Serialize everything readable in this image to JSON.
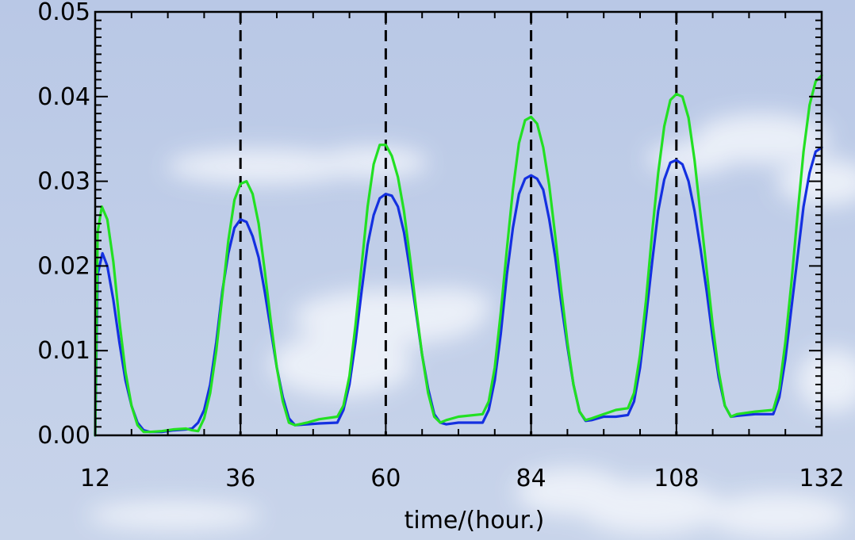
{
  "chart_data": {
    "type": "line",
    "title": "",
    "xlabel": "time/(hour.)",
    "ylabel": "",
    "xlim": [
      12,
      132
    ],
    "ylim": [
      0,
      0.05
    ],
    "x_ticks": [
      "12",
      "36",
      "60",
      "84",
      "108",
      "132"
    ],
    "y_ticks": [
      "0.00",
      "0.01",
      "0.02",
      "0.03",
      "0.04",
      "0.05"
    ],
    "x_tick_values": [
      12,
      36,
      60,
      84,
      108,
      132
    ],
    "y_tick_values": [
      0,
      0.01,
      0.02,
      0.03,
      0.04,
      0.05
    ],
    "vlines": [
      36,
      60,
      84,
      108
    ],
    "grid": false,
    "legend": "none",
    "series": [
      {
        "color": "#1430e0",
        "points": [
          [
            12,
            0.0
          ],
          [
            12.4,
            0.019
          ],
          [
            13.2,
            0.0215
          ],
          [
            14,
            0.02
          ],
          [
            15,
            0.016
          ],
          [
            16,
            0.011
          ],
          [
            17,
            0.0065
          ],
          [
            18,
            0.0035
          ],
          [
            19,
            0.0015
          ],
          [
            20,
            0.0006
          ],
          [
            21,
            0.0004
          ],
          [
            23,
            0.0004
          ],
          [
            25,
            0.0006
          ],
          [
            27,
            0.0007
          ],
          [
            28,
            0.0008
          ],
          [
            29,
            0.0015
          ],
          [
            30,
            0.003
          ],
          [
            31,
            0.006
          ],
          [
            32,
            0.011
          ],
          [
            33,
            0.017
          ],
          [
            34,
            0.0215
          ],
          [
            35,
            0.0245
          ],
          [
            36,
            0.0255
          ],
          [
            37,
            0.0252
          ],
          [
            38,
            0.0235
          ],
          [
            39,
            0.021
          ],
          [
            40,
            0.017
          ],
          [
            41,
            0.0125
          ],
          [
            42,
            0.008
          ],
          [
            43,
            0.0045
          ],
          [
            44,
            0.002
          ],
          [
            45,
            0.0012
          ],
          [
            47,
            0.0013
          ],
          [
            49,
            0.0014
          ],
          [
            52,
            0.0015
          ],
          [
            53,
            0.003
          ],
          [
            54,
            0.006
          ],
          [
            55,
            0.011
          ],
          [
            56,
            0.017
          ],
          [
            57,
            0.0225
          ],
          [
            58,
            0.026
          ],
          [
            59,
            0.028
          ],
          [
            60,
            0.0285
          ],
          [
            61,
            0.0283
          ],
          [
            62,
            0.027
          ],
          [
            63,
            0.024
          ],
          [
            64,
            0.0195
          ],
          [
            65,
            0.0145
          ],
          [
            66,
            0.0095
          ],
          [
            67,
            0.0055
          ],
          [
            68,
            0.0025
          ],
          [
            69,
            0.0015
          ],
          [
            70,
            0.0013
          ],
          [
            72,
            0.0015
          ],
          [
            76,
            0.0015
          ],
          [
            77,
            0.003
          ],
          [
            78,
            0.0065
          ],
          [
            79,
            0.012
          ],
          [
            80,
            0.019
          ],
          [
            81,
            0.0245
          ],
          [
            82,
            0.0285
          ],
          [
            83,
            0.0303
          ],
          [
            84,
            0.0307
          ],
          [
            85,
            0.0303
          ],
          [
            86,
            0.029
          ],
          [
            87,
            0.0255
          ],
          [
            88,
            0.021
          ],
          [
            89,
            0.0155
          ],
          [
            90,
            0.0105
          ],
          [
            91,
            0.006
          ],
          [
            92,
            0.0028
          ],
          [
            93,
            0.0017
          ],
          [
            94,
            0.0018
          ],
          [
            96,
            0.0022
          ],
          [
            98,
            0.0022
          ],
          [
            100,
            0.0024
          ],
          [
            101,
            0.004
          ],
          [
            102,
            0.008
          ],
          [
            103,
            0.014
          ],
          [
            104,
            0.0205
          ],
          [
            105,
            0.0265
          ],
          [
            106,
            0.0302
          ],
          [
            107,
            0.0322
          ],
          [
            108,
            0.0325
          ],
          [
            109,
            0.032
          ],
          [
            110,
            0.03
          ],
          [
            111,
            0.0265
          ],
          [
            112,
            0.022
          ],
          [
            113,
            0.017
          ],
          [
            114,
            0.0115
          ],
          [
            115,
            0.0068
          ],
          [
            116,
            0.0035
          ],
          [
            117,
            0.0022
          ],
          [
            118,
            0.0023
          ],
          [
            121,
            0.0025
          ],
          [
            124,
            0.0025
          ],
          [
            125,
            0.0045
          ],
          [
            126,
            0.009
          ],
          [
            127,
            0.015
          ],
          [
            128,
            0.021
          ],
          [
            129,
            0.027
          ],
          [
            130,
            0.031
          ],
          [
            131,
            0.0335
          ],
          [
            132,
            0.034
          ]
        ]
      },
      {
        "color": "#22e022",
        "points": [
          [
            12,
            0.0
          ],
          [
            12.4,
            0.024
          ],
          [
            13.1,
            0.027
          ],
          [
            14,
            0.0255
          ],
          [
            15,
            0.0205
          ],
          [
            16,
            0.0135
          ],
          [
            17,
            0.0075
          ],
          [
            18,
            0.0035
          ],
          [
            19,
            0.0012
          ],
          [
            20,
            0.0004
          ],
          [
            21,
            0.0004
          ],
          [
            23,
            0.0005
          ],
          [
            25,
            0.0007
          ],
          [
            27,
            0.0008
          ],
          [
            28,
            0.0006
          ],
          [
            29,
            0.0005
          ],
          [
            30,
            0.002
          ],
          [
            31,
            0.005
          ],
          [
            32,
            0.01
          ],
          [
            33,
            0.0165
          ],
          [
            34,
            0.023
          ],
          [
            35,
            0.0278
          ],
          [
            36,
            0.0297
          ],
          [
            37,
            0.03
          ],
          [
            38,
            0.0285
          ],
          [
            39,
            0.025
          ],
          [
            40,
            0.0195
          ],
          [
            41,
            0.0135
          ],
          [
            42,
            0.008
          ],
          [
            43,
            0.004
          ],
          [
            44,
            0.0015
          ],
          [
            45,
            0.0012
          ],
          [
            47,
            0.0015
          ],
          [
            49,
            0.0019
          ],
          [
            52,
            0.0022
          ],
          [
            53,
            0.0035
          ],
          [
            54,
            0.007
          ],
          [
            55,
            0.013
          ],
          [
            56,
            0.02
          ],
          [
            57,
            0.027
          ],
          [
            58,
            0.032
          ],
          [
            59,
            0.0343
          ],
          [
            60,
            0.0343
          ],
          [
            61,
            0.033
          ],
          [
            62,
            0.0305
          ],
          [
            63,
            0.0265
          ],
          [
            64,
            0.021
          ],
          [
            65,
            0.015
          ],
          [
            66,
            0.0095
          ],
          [
            67,
            0.005
          ],
          [
            68,
            0.0022
          ],
          [
            69,
            0.0015
          ],
          [
            70,
            0.0018
          ],
          [
            72,
            0.0022
          ],
          [
            76,
            0.0025
          ],
          [
            77,
            0.004
          ],
          [
            78,
            0.008
          ],
          [
            79,
            0.0145
          ],
          [
            80,
            0.022
          ],
          [
            81,
            0.029
          ],
          [
            82,
            0.0345
          ],
          [
            83,
            0.0372
          ],
          [
            84,
            0.0376
          ],
          [
            85,
            0.0368
          ],
          [
            86,
            0.034
          ],
          [
            87,
            0.0295
          ],
          [
            88,
            0.0235
          ],
          [
            89,
            0.017
          ],
          [
            90,
            0.011
          ],
          [
            91,
            0.006
          ],
          [
            92,
            0.0028
          ],
          [
            93,
            0.0018
          ],
          [
            94,
            0.002
          ],
          [
            96,
            0.0025
          ],
          [
            98,
            0.003
          ],
          [
            100,
            0.0032
          ],
          [
            101,
            0.005
          ],
          [
            102,
            0.0095
          ],
          [
            103,
            0.016
          ],
          [
            104,
            0.024
          ],
          [
            105,
            0.031
          ],
          [
            106,
            0.0365
          ],
          [
            107,
            0.0396
          ],
          [
            108,
            0.0403
          ],
          [
            109,
            0.04
          ],
          [
            110,
            0.0375
          ],
          [
            111,
            0.0325
          ],
          [
            112,
            0.026
          ],
          [
            113,
            0.0195
          ],
          [
            114,
            0.013
          ],
          [
            115,
            0.0075
          ],
          [
            116,
            0.0035
          ],
          [
            117,
            0.0022
          ],
          [
            118,
            0.0025
          ],
          [
            121,
            0.0028
          ],
          [
            124,
            0.003
          ],
          [
            125,
            0.0055
          ],
          [
            126,
            0.011
          ],
          [
            127,
            0.018
          ],
          [
            128,
            0.026
          ],
          [
            129,
            0.0335
          ],
          [
            130,
            0.039
          ],
          [
            131,
            0.0418
          ],
          [
            132,
            0.0425
          ]
        ]
      }
    ]
  }
}
